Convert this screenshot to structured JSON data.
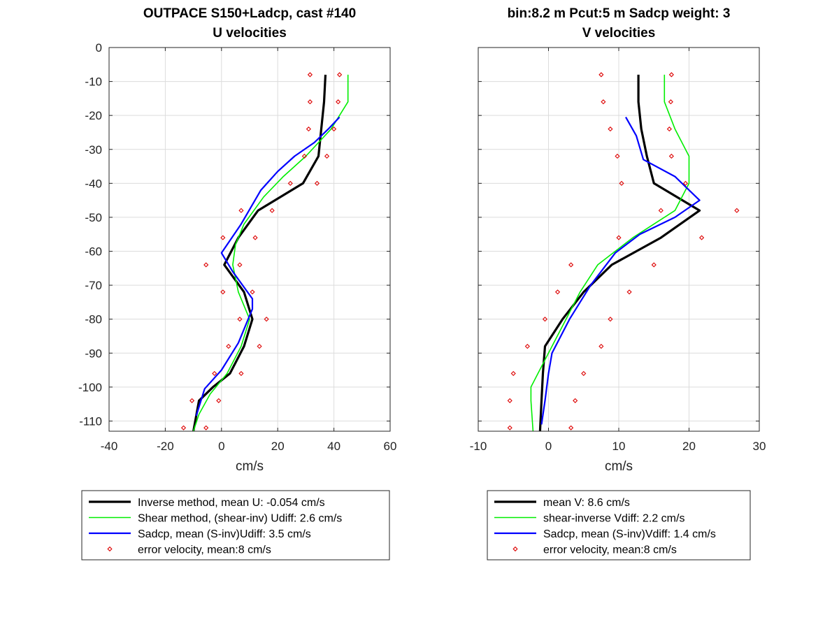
{
  "chart_data": [
    {
      "type": "line",
      "title": [
        "OUTPACE S150+Ladcp, cast #140",
        "U velocities"
      ],
      "xlabel": "cm/s",
      "ylabel": "",
      "xlim": [
        -40,
        60
      ],
      "ylim": [
        -113,
        0
      ],
      "xticks": [
        -40,
        -20,
        0,
        20,
        40,
        60
      ],
      "yticks": [
        0,
        -10,
        -20,
        -30,
        -40,
        -50,
        -60,
        -70,
        -80,
        -90,
        -100,
        -110
      ],
      "grid": true,
      "legend_position": "below",
      "legend": [
        "Inverse method, mean U:  -0.054 cm/s",
        "Shear method, (shear-inv)  Udiff:  2.6 cm/s",
        "Sadcp, mean (S-inv)Udiff: 3.5 cm/s",
        "error velocity, mean:8 cm/s"
      ],
      "series": [
        {
          "style": "line",
          "color": "#000000",
          "width": 3.2,
          "x": [
            37,
            36.5,
            35.5,
            34.5,
            29,
            13,
            6,
            1,
            8,
            11,
            8,
            3,
            -3,
            -8,
            -10
          ],
          "y": [
            -8,
            -16,
            -24,
            -32,
            -40,
            -48,
            -56,
            -64,
            -72,
            -80,
            -88,
            -96,
            -100,
            -104,
            -113
          ]
        },
        {
          "style": "line",
          "color": "#00ee00",
          "width": 1.6,
          "x": [
            45,
            45,
            39,
            30,
            22,
            15,
            8,
            5,
            4,
            6,
            10,
            7,
            2,
            -4,
            -8,
            -10
          ],
          "y": [
            -8,
            -16,
            -24,
            -32,
            -38,
            -44,
            -52,
            -58,
            -64,
            -72,
            -80,
            -88,
            -96,
            -102,
            -108,
            -113
          ]
        },
        {
          "style": "line",
          "color": "#0000ff",
          "width": 2.2,
          "x": [
            42,
            38,
            33,
            26,
            20,
            14,
            7,
            0,
            4,
            11,
            11,
            6,
            0,
            -6,
            -9
          ],
          "y": [
            -20.5,
            -24,
            -28,
            -32,
            -36.5,
            -42,
            -52,
            -60.5,
            -66,
            -74,
            -77,
            -87,
            -95,
            -100.5,
            -108.5
          ]
        },
        {
          "style": "marker",
          "color": "#dd0000",
          "x": [
            31.5,
            31.5,
            31,
            29.5,
            24.5,
            7,
            0.5,
            -5.5,
            0.5,
            6.5,
            2.5,
            -2.5,
            -10.5,
            -13.5,
            42,
            41.5,
            40,
            37.5,
            34,
            18,
            12,
            6.5,
            11,
            16,
            13.5,
            7,
            -1,
            -5.5
          ],
          "y": [
            -8,
            -16,
            -24,
            -32,
            -40,
            -48,
            -56,
            -64,
            -72,
            -80,
            -88,
            -96,
            -104,
            -112,
            -8,
            -16,
            -24,
            -32,
            -40,
            -48,
            -56,
            -64,
            -72,
            -80,
            -88,
            -96,
            -104,
            -112
          ]
        }
      ]
    },
    {
      "type": "line",
      "title": [
        "bin:8.2 m  Pcut:5 m  Sadcp weight: 3",
        "V velocities"
      ],
      "xlabel": "cm/s",
      "ylabel": "",
      "xlim": [
        -10,
        30
      ],
      "ylim": [
        -113,
        0
      ],
      "xticks": [
        -10,
        0,
        10,
        20,
        30
      ],
      "yticks": [
        0,
        -10,
        -20,
        -30,
        -40,
        -50,
        -60,
        -70,
        -80,
        -90,
        -100,
        -110
      ],
      "grid": true,
      "legend_position": "below",
      "legend": [
        "mean V:  8.6 cm/s",
        "shear-inverse Vdiff:  2.2 cm/s",
        "Sadcp, mean (S-inv)Vdiff: 1.4 cm/s",
        "error velocity, mean:8 cm/s"
      ],
      "series": [
        {
          "style": "line",
          "color": "#000000",
          "width": 3.2,
          "x": [
            12.8,
            12.8,
            13.2,
            14,
            15,
            21.5,
            16,
            9,
            5,
            2,
            -0.5,
            -0.8,
            -1,
            -1.2
          ],
          "y": [
            -8,
            -16,
            -24,
            -32,
            -40,
            -48,
            -56,
            -64,
            -72,
            -80,
            -88,
            -96,
            -104,
            -113
          ]
        },
        {
          "style": "line",
          "color": "#00ee00",
          "width": 1.6,
          "x": [
            16.5,
            16.5,
            18,
            20,
            20,
            18,
            12,
            7,
            4.5,
            2.5,
            0.5,
            -1.5,
            -2.5,
            -2.5,
            -2.2
          ],
          "y": [
            -8,
            -16,
            -24,
            -32,
            -40,
            -48,
            -56,
            -64,
            -72,
            -80,
            -88,
            -96,
            -100,
            -104,
            -113
          ]
        },
        {
          "style": "line",
          "color": "#0000ff",
          "width": 2.2,
          "x": [
            11,
            12.5,
            13.5,
            18,
            21.5,
            18,
            13,
            9.5,
            6,
            3,
            0.5,
            0,
            -0.5,
            -1
          ],
          "y": [
            -20.5,
            -26,
            -33,
            -38,
            -45,
            -50,
            -55,
            -60.5,
            -70,
            -80,
            -90,
            -96,
            -104,
            -111
          ]
        },
        {
          "style": "marker",
          "color": "#dd0000",
          "x": [
            7.5,
            7.8,
            8.8,
            9.8,
            10.4,
            16,
            10,
            3.2,
            1.3,
            -0.5,
            -3,
            -5,
            -5.5,
            -5.5,
            17.5,
            17.4,
            17.2,
            17.5,
            19.5,
            26.8,
            21.8,
            15,
            11.5,
            8.8,
            7.5,
            5,
            3.8,
            3.2
          ],
          "y": [
            -8,
            -16,
            -24,
            -32,
            -40,
            -48,
            -56,
            -64,
            -72,
            -80,
            -88,
            -96,
            -104,
            -112,
            -8,
            -16,
            -24,
            -32,
            -40,
            -48,
            -56,
            -64,
            -72,
            -80,
            -88,
            -96,
            -104,
            -112
          ]
        }
      ]
    }
  ]
}
